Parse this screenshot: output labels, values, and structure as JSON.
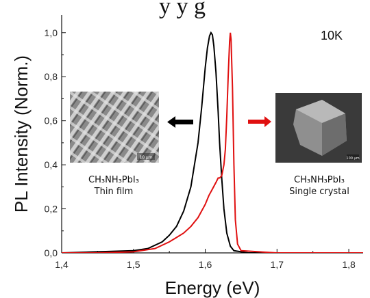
{
  "chart_data": {
    "type": "line",
    "title_partial": "y    y     g",
    "xlabel": "Energy (eV)",
    "ylabel": "PL Intensity (Norm.)",
    "xlim": [
      1.4,
      1.82
    ],
    "ylim": [
      0.0,
      1.08
    ],
    "x_ticks": [
      "1,4",
      "1,5",
      "1,6",
      "1,7",
      "1,8"
    ],
    "y_ticks": [
      "0,0",
      "0,2",
      "0,4",
      "0,6",
      "0,8",
      "1,0"
    ],
    "temperature_label": "10K",
    "grid": false,
    "series": [
      {
        "color": "#000000",
        "x": [
          1.4,
          1.45,
          1.5,
          1.52,
          1.54,
          1.55,
          1.56,
          1.57,
          1.58,
          1.59,
          1.595,
          1.6,
          1.603,
          1.606,
          1.608,
          1.61,
          1.612,
          1.615,
          1.618,
          1.62,
          1.623,
          1.626,
          1.63,
          1.635,
          1.64,
          1.66,
          1.7,
          1.82
        ],
        "y": [
          0.0,
          0.005,
          0.01,
          0.02,
          0.05,
          0.08,
          0.12,
          0.19,
          0.3,
          0.5,
          0.66,
          0.84,
          0.93,
          0.985,
          1.0,
          0.99,
          0.94,
          0.82,
          0.64,
          0.5,
          0.34,
          0.2,
          0.09,
          0.03,
          0.01,
          0.0,
          0.0,
          0.0
        ]
      },
      {
        "color": "#e01010",
        "x": [
          1.4,
          1.45,
          1.5,
          1.53,
          1.55,
          1.57,
          1.58,
          1.59,
          1.6,
          1.605,
          1.61,
          1.615,
          1.618,
          1.62,
          1.623,
          1.626,
          1.628,
          1.63,
          1.632,
          1.634,
          1.635,
          1.636,
          1.638,
          1.64,
          1.642,
          1.645,
          1.65,
          1.7,
          1.82
        ],
        "y": [
          0.0,
          0.0,
          0.005,
          0.02,
          0.05,
          0.09,
          0.12,
          0.16,
          0.22,
          0.26,
          0.29,
          0.32,
          0.34,
          0.34,
          0.35,
          0.4,
          0.47,
          0.62,
          0.8,
          0.96,
          1.0,
          0.97,
          0.75,
          0.4,
          0.15,
          0.04,
          0.01,
          0.0,
          0.0
        ]
      }
    ]
  },
  "insets": {
    "left_label_line1": "CH₃NH₃PbI₃",
    "left_label_line2": "Thin film",
    "left_scale": "10 μm",
    "right_label_line1": "CH₃NH₃PbI₃",
    "right_label_line2": "Single crystal",
    "right_scale": "100 μm"
  },
  "colors": {
    "black_series": "#000000",
    "red_series": "#e01010",
    "arrow_left": "#000000",
    "arrow_right": "#e01010"
  }
}
